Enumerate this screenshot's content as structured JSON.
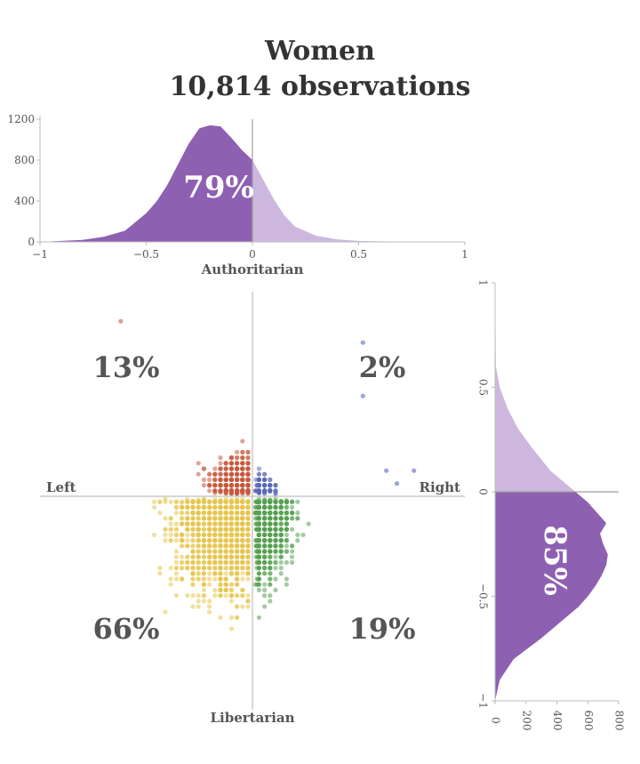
{
  "title": {
    "line1": "Women",
    "line2": "10,814 observations"
  },
  "chart_data": [
    {
      "id": "top-density",
      "type": "area",
      "description_axis": "economic (left/right)",
      "xlabel": "Authoritarian",
      "xlim": [
        -1,
        1
      ],
      "ylim": [
        0,
        1200
      ],
      "x_ticks": [
        "−1",
        "−0.5",
        "0",
        "0.5",
        "1"
      ],
      "y_ticks": [
        "0",
        "400",
        "800",
        "1200"
      ],
      "x": [
        -1.0,
        -0.9,
        -0.8,
        -0.7,
        -0.6,
        -0.5,
        -0.45,
        -0.4,
        -0.35,
        -0.3,
        -0.25,
        -0.2,
        -0.15,
        -0.1,
        -0.05,
        0.0,
        0.05,
        0.1,
        0.15,
        0.2,
        0.3,
        0.4,
        0.5,
        0.6,
        0.8,
        1.0
      ],
      "y": [
        0,
        10,
        20,
        50,
        110,
        280,
        400,
        560,
        760,
        960,
        1110,
        1140,
        1130,
        1020,
        900,
        800,
        610,
        420,
        260,
        150,
        60,
        25,
        10,
        5,
        0,
        0
      ],
      "highlight_label": "79%",
      "highlight_side": "left of 0",
      "colors": {
        "main": "#8E60B2",
        "light": "#CDB7DE"
      }
    },
    {
      "id": "scatter",
      "type": "scatter",
      "xlim": [
        -1,
        1
      ],
      "ylim": [
        -1,
        1
      ],
      "labels": {
        "left": "Left",
        "right": "Right",
        "top": "Authoritarian",
        "bottom": "Libertarian"
      },
      "quadrants": [
        {
          "name": "authoritarian-left",
          "label": "13%",
          "color": "#C65A3C",
          "count": 600,
          "x_spread": [
            -0.45,
            0
          ],
          "y_spread": [
            0,
            0.55
          ]
        },
        {
          "name": "authoritarian-right",
          "label": "2%",
          "color": "#5A68B6",
          "count": 110,
          "x_spread": [
            0,
            0.5
          ],
          "y_spread": [
            0,
            0.75
          ]
        },
        {
          "name": "libertarian-left",
          "label": "66%",
          "color": "#E8C44A",
          "count": 1700,
          "x_spread": [
            -0.9,
            0
          ],
          "y_spread": [
            -1,
            0
          ]
        },
        {
          "name": "libertarian-right",
          "label": "19%",
          "color": "#54A14E",
          "count": 800,
          "x_spread": [
            0,
            0.6
          ],
          "y_spread": [
            -1,
            0
          ]
        }
      ]
    },
    {
      "id": "right-density",
      "type": "area",
      "description_axis": "social (authoritarian/libertarian)",
      "orientation": "vertical",
      "xlim": [
        0,
        800
      ],
      "ylim": [
        -1,
        1
      ],
      "x_ticks": [
        "0",
        "200",
        "400",
        "600",
        "800"
      ],
      "y_ticks": [
        "1",
        "0.5",
        "0",
        "−0.5",
        "−1"
      ],
      "y": [
        1.0,
        0.6,
        0.5,
        0.4,
        0.3,
        0.2,
        0.1,
        0.05,
        0.0,
        -0.05,
        -0.1,
        -0.15,
        -0.2,
        -0.25,
        -0.3,
        -0.35,
        -0.4,
        -0.45,
        -0.5,
        -0.55,
        -0.6,
        -0.7,
        -0.8,
        -0.9,
        -1.0
      ],
      "x": [
        0,
        5,
        30,
        80,
        150,
        250,
        360,
        440,
        520,
        600,
        660,
        720,
        680,
        700,
        730,
        720,
        690,
        650,
        600,
        540,
        460,
        300,
        120,
        30,
        0
      ],
      "highlight_label": "85%",
      "highlight_side": "below 0",
      "colors": {
        "main": "#8E60B2",
        "light": "#CDB7DE"
      }
    }
  ]
}
